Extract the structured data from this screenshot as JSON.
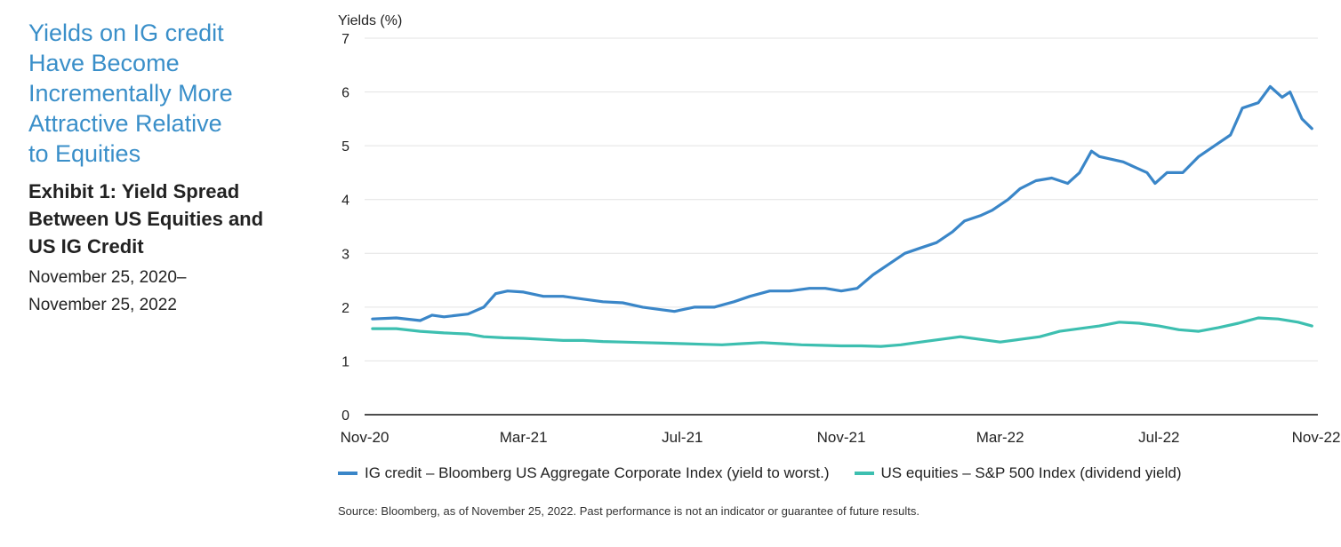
{
  "sidebar": {
    "headline": [
      "Yields on IG credit",
      "Have Become",
      "Incrementally More",
      "Attractive Relative",
      "to Equities"
    ],
    "exhibit": [
      "Exhibit 1: Yield Spread",
      "Between US Equities and",
      "US IG Credit"
    ],
    "dates": [
      "November 25, 2020–",
      "November 25, 2022"
    ]
  },
  "legend": [
    {
      "label": "IG credit – Bloomberg US Aggregate Corporate Index (yield to worst.)",
      "color": "#3a86c8"
    },
    {
      "label": "US equities – S&P 500 Index (dividend yield)",
      "color": "#3dbfb0"
    }
  ],
  "source": "Source: Bloomberg, as of November 25, 2022. Past performance is not an indicator or guarantee of future results.",
  "chart_data": {
    "type": "line",
    "title": "",
    "ylabel": "Yields (%)",
    "xlabel": "",
    "ylim": [
      0,
      7
    ],
    "yticks": [
      0,
      1,
      2,
      3,
      4,
      5,
      6,
      7
    ],
    "xlim": [
      0,
      24
    ],
    "xticks": [
      {
        "label": "Nov-20",
        "x": 0
      },
      {
        "label": "Mar-21",
        "x": 4
      },
      {
        "label": "Jul-21",
        "x": 8
      },
      {
        "label": "Nov-21",
        "x": 12
      },
      {
        "label": "Mar-22",
        "x": 16
      },
      {
        "label": "Jul-22",
        "x": 20
      },
      {
        "label": "Nov-22",
        "x": 24
      }
    ],
    "grid": true,
    "legend_position": "bottom",
    "series": [
      {
        "name": "IG credit – Bloomberg US Aggregate Corporate Index (yield to worst.)",
        "color": "#3a86c8",
        "x": [
          0.2,
          0.8,
          1.4,
          1.7,
          2.0,
          2.6,
          3.0,
          3.3,
          3.6,
          4.0,
          4.5,
          5.0,
          5.5,
          6.0,
          6.5,
          7.0,
          7.5,
          7.8,
          8.3,
          8.8,
          9.3,
          9.7,
          10.2,
          10.7,
          11.2,
          11.6,
          12.0,
          12.4,
          12.8,
          13.2,
          13.6,
          14.0,
          14.4,
          14.8,
          15.1,
          15.5,
          15.8,
          16.2,
          16.5,
          16.9,
          17.3,
          17.7,
          18.0,
          18.3,
          18.5,
          18.8,
          19.1,
          19.4,
          19.7,
          19.9,
          20.2,
          20.6,
          21.0,
          21.4,
          21.8,
          22.1,
          22.5,
          22.8,
          23.1,
          23.3,
          23.6,
          23.85
        ],
        "y": [
          1.78,
          1.8,
          1.75,
          1.85,
          1.82,
          1.87,
          2.0,
          2.25,
          2.3,
          2.28,
          2.2,
          2.2,
          2.15,
          2.1,
          2.08,
          2.0,
          1.95,
          1.92,
          2.0,
          2.0,
          2.1,
          2.2,
          2.3,
          2.3,
          2.35,
          2.35,
          2.3,
          2.35,
          2.6,
          2.8,
          3.0,
          3.1,
          3.2,
          3.4,
          3.6,
          3.7,
          3.8,
          4.0,
          4.2,
          4.35,
          4.4,
          4.3,
          4.5,
          4.9,
          4.8,
          4.75,
          4.7,
          4.6,
          4.5,
          4.3,
          4.5,
          4.5,
          4.8,
          5.0,
          5.2,
          5.7,
          5.8,
          6.1,
          5.9,
          6.0,
          5.5,
          5.32
        ]
      },
      {
        "name": "US equities – S&P 500 Index (dividend yield)",
        "color": "#3dbfb0",
        "x": [
          0.2,
          0.8,
          1.4,
          2.0,
          2.6,
          3.0,
          3.5,
          4.0,
          4.5,
          5.0,
          5.5,
          6.0,
          6.5,
          7.0,
          7.5,
          8.0,
          8.5,
          9.0,
          9.5,
          10.0,
          10.5,
          11.0,
          11.5,
          12.0,
          12.5,
          13.0,
          13.5,
          14.0,
          14.5,
          15.0,
          15.5,
          16.0,
          16.5,
          17.0,
          17.5,
          18.0,
          18.5,
          19.0,
          19.5,
          20.0,
          20.5,
          21.0,
          21.5,
          22.0,
          22.5,
          23.0,
          23.5,
          23.85
        ],
        "y": [
          1.6,
          1.6,
          1.55,
          1.52,
          1.5,
          1.45,
          1.43,
          1.42,
          1.4,
          1.38,
          1.38,
          1.36,
          1.35,
          1.34,
          1.33,
          1.32,
          1.31,
          1.3,
          1.32,
          1.34,
          1.32,
          1.3,
          1.29,
          1.28,
          1.28,
          1.27,
          1.3,
          1.35,
          1.4,
          1.45,
          1.4,
          1.35,
          1.4,
          1.45,
          1.55,
          1.6,
          1.65,
          1.72,
          1.7,
          1.65,
          1.58,
          1.55,
          1.62,
          1.7,
          1.8,
          1.78,
          1.72,
          1.65
        ]
      }
    ]
  }
}
